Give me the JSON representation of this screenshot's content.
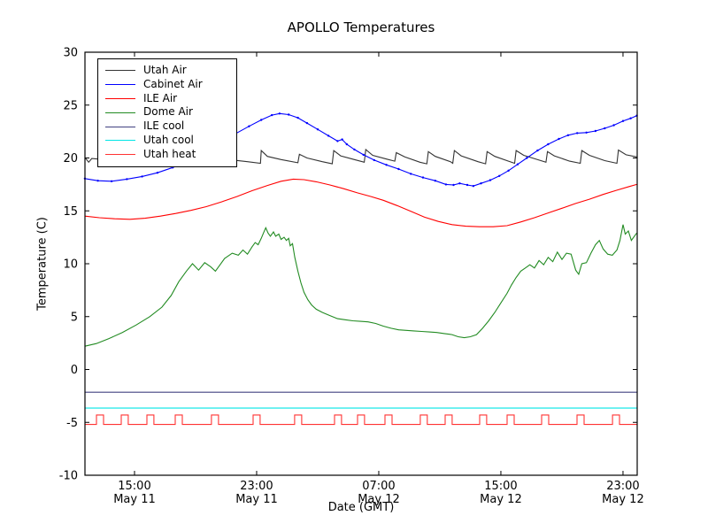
{
  "chart_data": {
    "type": "line",
    "title": "APOLLO Temperatures",
    "xlabel": "Date (GMT)",
    "ylabel": "Temperature (C)",
    "ylim": [
      -10,
      30
    ],
    "yticks": [
      {
        "v": 30,
        "label": "30"
      },
      {
        "v": 25,
        "label": "25"
      },
      {
        "v": 20,
        "label": "20"
      },
      {
        "v": 15,
        "label": "15"
      },
      {
        "v": 10,
        "label": "10"
      },
      {
        "v": 5,
        "label": "5"
      },
      {
        "v": 0,
        "label": "0"
      },
      {
        "v": -5,
        "label": "-5"
      },
      {
        "v": -10,
        "label": "-10"
      }
    ],
    "x_unit": "hours since May 11 00:00 GMT",
    "xlim": [
      11.754,
      47.93
    ],
    "xticks": [
      {
        "t": 15,
        "time": "15:00",
        "date": "May 11"
      },
      {
        "t": 23,
        "time": "23:00",
        "date": "May 11"
      },
      {
        "t": 31,
        "time": "07:00",
        "date": "May 12"
      },
      {
        "t": 39,
        "time": "15:00",
        "date": "May 12"
      },
      {
        "t": 47,
        "time": "23:00",
        "date": "May 12"
      }
    ],
    "grid": false,
    "legend_position": "upper left",
    "series": [
      {
        "id": "utah_air",
        "name": "Utah Air",
        "color": "#333333",
        "points": [
          [
            11.75,
            20.05
          ],
          [
            12.0,
            19.6
          ],
          [
            12.2,
            19.95
          ],
          [
            13,
            19.85
          ],
          [
            20,
            19.8
          ],
          [
            21.5,
            19.8
          ],
          [
            22.4,
            19.65
          ],
          [
            23.25,
            19.5
          ],
          [
            23.3,
            20.7
          ],
          [
            23.7,
            20.15
          ],
          [
            24.6,
            19.85
          ],
          [
            25.7,
            19.55
          ],
          [
            25.8,
            20.35
          ],
          [
            26.3,
            20.0
          ],
          [
            27.3,
            19.65
          ],
          [
            27.95,
            19.45
          ],
          [
            28.05,
            20.7
          ],
          [
            28.5,
            20.2
          ],
          [
            29.4,
            19.85
          ],
          [
            30.05,
            19.6
          ],
          [
            30.15,
            20.8
          ],
          [
            30.6,
            20.25
          ],
          [
            31.5,
            19.9
          ],
          [
            32.05,
            19.7
          ],
          [
            32.15,
            20.5
          ],
          [
            32.7,
            20.1
          ],
          [
            33.7,
            19.6
          ],
          [
            34.15,
            19.45
          ],
          [
            34.25,
            20.6
          ],
          [
            34.7,
            20.15
          ],
          [
            35.7,
            19.65
          ],
          [
            35.85,
            19.5
          ],
          [
            35.95,
            20.7
          ],
          [
            36.4,
            20.2
          ],
          [
            37.5,
            19.65
          ],
          [
            38.0,
            19.45
          ],
          [
            38.1,
            20.6
          ],
          [
            38.6,
            20.15
          ],
          [
            39.5,
            19.7
          ],
          [
            39.9,
            19.5
          ],
          [
            40.0,
            20.7
          ],
          [
            40.5,
            20.25
          ],
          [
            41.5,
            19.8
          ],
          [
            41.95,
            19.6
          ],
          [
            42.05,
            20.6
          ],
          [
            42.5,
            20.2
          ],
          [
            43.5,
            19.7
          ],
          [
            44.2,
            19.5
          ],
          [
            44.3,
            20.7
          ],
          [
            44.8,
            20.25
          ],
          [
            45.8,
            19.75
          ],
          [
            46.6,
            19.5
          ],
          [
            46.7,
            20.75
          ],
          [
            47.2,
            20.3
          ],
          [
            47.9,
            20.1
          ]
        ]
      },
      {
        "id": "cabinet_air",
        "name": "Cabinet Air",
        "color": "#0000ff",
        "markers": true,
        "points": [
          [
            11.75,
            18.05
          ],
          [
            12.6,
            17.85
          ],
          [
            13.5,
            17.8
          ],
          [
            14.5,
            18.0
          ],
          [
            15.5,
            18.25
          ],
          [
            16.5,
            18.6
          ],
          [
            17.5,
            19.1
          ],
          [
            18.5,
            19.7
          ],
          [
            19.5,
            20.4
          ],
          [
            20.5,
            21.3
          ],
          [
            21.5,
            22.2
          ],
          [
            22.5,
            23.0
          ],
          [
            23.3,
            23.6
          ],
          [
            24.0,
            24.05
          ],
          [
            24.5,
            24.2
          ],
          [
            25.1,
            24.1
          ],
          [
            25.7,
            23.8
          ],
          [
            26.3,
            23.3
          ],
          [
            27.0,
            22.7
          ],
          [
            27.7,
            22.1
          ],
          [
            28.3,
            21.6
          ],
          [
            28.6,
            21.75
          ],
          [
            28.9,
            21.3
          ],
          [
            29.4,
            20.8
          ],
          [
            30.0,
            20.3
          ],
          [
            30.7,
            19.8
          ],
          [
            31.5,
            19.35
          ],
          [
            32.3,
            18.95
          ],
          [
            33.1,
            18.5
          ],
          [
            33.9,
            18.15
          ],
          [
            34.7,
            17.85
          ],
          [
            35.4,
            17.5
          ],
          [
            35.9,
            17.45
          ],
          [
            36.3,
            17.6
          ],
          [
            36.8,
            17.45
          ],
          [
            37.2,
            17.35
          ],
          [
            37.7,
            17.6
          ],
          [
            38.3,
            17.9
          ],
          [
            38.9,
            18.3
          ],
          [
            39.5,
            18.8
          ],
          [
            40.1,
            19.4
          ],
          [
            40.7,
            20.0
          ],
          [
            41.4,
            20.7
          ],
          [
            42.1,
            21.3
          ],
          [
            42.8,
            21.8
          ],
          [
            43.4,
            22.15
          ],
          [
            44.0,
            22.35
          ],
          [
            44.6,
            22.4
          ],
          [
            45.2,
            22.55
          ],
          [
            45.8,
            22.8
          ],
          [
            46.4,
            23.1
          ],
          [
            47.0,
            23.5
          ],
          [
            47.5,
            23.75
          ],
          [
            47.9,
            24.0
          ]
        ]
      },
      {
        "id": "ile_air",
        "name": "ILE Air",
        "color": "#ff0000",
        "points": [
          [
            11.75,
            14.5
          ],
          [
            12.7,
            14.35
          ],
          [
            13.7,
            14.25
          ],
          [
            14.7,
            14.2
          ],
          [
            15.7,
            14.3
          ],
          [
            16.7,
            14.5
          ],
          [
            17.7,
            14.75
          ],
          [
            18.7,
            15.05
          ],
          [
            19.7,
            15.4
          ],
          [
            20.7,
            15.85
          ],
          [
            21.7,
            16.35
          ],
          [
            22.7,
            16.9
          ],
          [
            23.7,
            17.4
          ],
          [
            24.6,
            17.8
          ],
          [
            25.4,
            18.0
          ],
          [
            26.1,
            17.95
          ],
          [
            26.9,
            17.75
          ],
          [
            27.8,
            17.45
          ],
          [
            28.7,
            17.1
          ],
          [
            29.6,
            16.7
          ],
          [
            30.5,
            16.35
          ],
          [
            31.3,
            16.0
          ],
          [
            32.2,
            15.5
          ],
          [
            33.1,
            14.95
          ],
          [
            34.0,
            14.4
          ],
          [
            34.9,
            14.0
          ],
          [
            35.8,
            13.7
          ],
          [
            36.7,
            13.55
          ],
          [
            37.6,
            13.5
          ],
          [
            38.5,
            13.5
          ],
          [
            39.4,
            13.6
          ],
          [
            40.3,
            13.95
          ],
          [
            41.2,
            14.35
          ],
          [
            42.1,
            14.8
          ],
          [
            43.0,
            15.25
          ],
          [
            43.9,
            15.7
          ],
          [
            44.8,
            16.1
          ],
          [
            45.7,
            16.55
          ],
          [
            46.6,
            16.95
          ],
          [
            47.4,
            17.3
          ],
          [
            47.9,
            17.5
          ]
        ]
      },
      {
        "id": "dome_air",
        "name": "Dome Air",
        "color": "#228b22",
        "points": [
          [
            11.75,
            2.2
          ],
          [
            12.5,
            2.45
          ],
          [
            13.3,
            2.9
          ],
          [
            14.2,
            3.5
          ],
          [
            15.1,
            4.2
          ],
          [
            16.0,
            5.0
          ],
          [
            16.8,
            5.9
          ],
          [
            17.4,
            7.0
          ],
          [
            17.9,
            8.3
          ],
          [
            18.4,
            9.3
          ],
          [
            18.8,
            10.0
          ],
          [
            19.2,
            9.4
          ],
          [
            19.6,
            10.1
          ],
          [
            20.0,
            9.7
          ],
          [
            20.3,
            9.3
          ],
          [
            20.9,
            10.5
          ],
          [
            21.4,
            11.0
          ],
          [
            21.8,
            10.8
          ],
          [
            22.1,
            11.3
          ],
          [
            22.4,
            10.9
          ],
          [
            22.7,
            11.6
          ],
          [
            22.9,
            12.0
          ],
          [
            23.1,
            11.8
          ],
          [
            23.3,
            12.4
          ],
          [
            23.45,
            12.9
          ],
          [
            23.6,
            13.4
          ],
          [
            23.75,
            12.9
          ],
          [
            23.9,
            12.6
          ],
          [
            24.1,
            13.0
          ],
          [
            24.25,
            12.6
          ],
          [
            24.45,
            12.8
          ],
          [
            24.6,
            12.3
          ],
          [
            24.8,
            12.5
          ],
          [
            24.95,
            12.2
          ],
          [
            25.1,
            12.4
          ],
          [
            25.2,
            11.7
          ],
          [
            25.35,
            11.9
          ],
          [
            25.5,
            10.6
          ],
          [
            25.7,
            9.3
          ],
          [
            25.9,
            8.2
          ],
          [
            26.1,
            7.3
          ],
          [
            26.35,
            6.6
          ],
          [
            26.6,
            6.1
          ],
          [
            26.9,
            5.7
          ],
          [
            27.3,
            5.4
          ],
          [
            27.8,
            5.1
          ],
          [
            28.3,
            4.8
          ],
          [
            28.8,
            4.7
          ],
          [
            29.3,
            4.6
          ],
          [
            29.8,
            4.55
          ],
          [
            30.3,
            4.5
          ],
          [
            30.8,
            4.35
          ],
          [
            31.3,
            4.1
          ],
          [
            31.8,
            3.9
          ],
          [
            32.3,
            3.75
          ],
          [
            32.8,
            3.7
          ],
          [
            33.3,
            3.65
          ],
          [
            33.8,
            3.6
          ],
          [
            34.3,
            3.55
          ],
          [
            34.8,
            3.5
          ],
          [
            35.3,
            3.4
          ],
          [
            35.8,
            3.3
          ],
          [
            36.2,
            3.1
          ],
          [
            36.6,
            3.0
          ],
          [
            37.0,
            3.1
          ],
          [
            37.4,
            3.3
          ],
          [
            37.8,
            3.9
          ],
          [
            38.2,
            4.6
          ],
          [
            38.6,
            5.4
          ],
          [
            39.0,
            6.3
          ],
          [
            39.4,
            7.2
          ],
          [
            39.7,
            8.0
          ],
          [
            40.0,
            8.7
          ],
          [
            40.3,
            9.3
          ],
          [
            40.6,
            9.6
          ],
          [
            40.9,
            9.9
          ],
          [
            41.2,
            9.6
          ],
          [
            41.5,
            10.3
          ],
          [
            41.8,
            9.9
          ],
          [
            42.1,
            10.6
          ],
          [
            42.4,
            10.2
          ],
          [
            42.7,
            11.1
          ],
          [
            43.0,
            10.4
          ],
          [
            43.3,
            11.0
          ],
          [
            43.6,
            10.9
          ],
          [
            43.9,
            9.4
          ],
          [
            44.1,
            9.0
          ],
          [
            44.3,
            10.0
          ],
          [
            44.6,
            10.1
          ],
          [
            44.9,
            11.0
          ],
          [
            45.2,
            11.8
          ],
          [
            45.45,
            12.2
          ],
          [
            45.7,
            11.4
          ],
          [
            46.0,
            10.9
          ],
          [
            46.3,
            10.8
          ],
          [
            46.6,
            11.3
          ],
          [
            46.8,
            12.2
          ],
          [
            47.0,
            13.7
          ],
          [
            47.15,
            12.8
          ],
          [
            47.35,
            13.1
          ],
          [
            47.55,
            12.2
          ],
          [
            47.7,
            12.5
          ],
          [
            47.9,
            12.9
          ]
        ]
      },
      {
        "id": "ile_cool",
        "name": "ILE cool",
        "color": "#404080",
        "points": [
          [
            11.754,
            -2.15
          ],
          [
            47.93,
            -2.15
          ]
        ]
      },
      {
        "id": "utah_cool",
        "name": "Utah cool",
        "color": "#00e5e5",
        "points": [
          [
            11.754,
            -3.65
          ],
          [
            47.93,
            -3.65
          ]
        ]
      },
      {
        "id": "utah_heat",
        "name": "Utah heat",
        "color": "#ff3333",
        "square": {
          "base": -5.2,
          "top": -4.3,
          "width_h": 0.46,
          "pulse_starts": [
            12.51,
            14.13,
            15.81,
            17.67,
            20.04,
            22.77,
            25.49,
            28.1,
            29.61,
            31.41,
            33.72,
            35.35,
            37.61,
            39.41,
            41.67,
            43.99,
            46.31
          ]
        }
      }
    ]
  }
}
